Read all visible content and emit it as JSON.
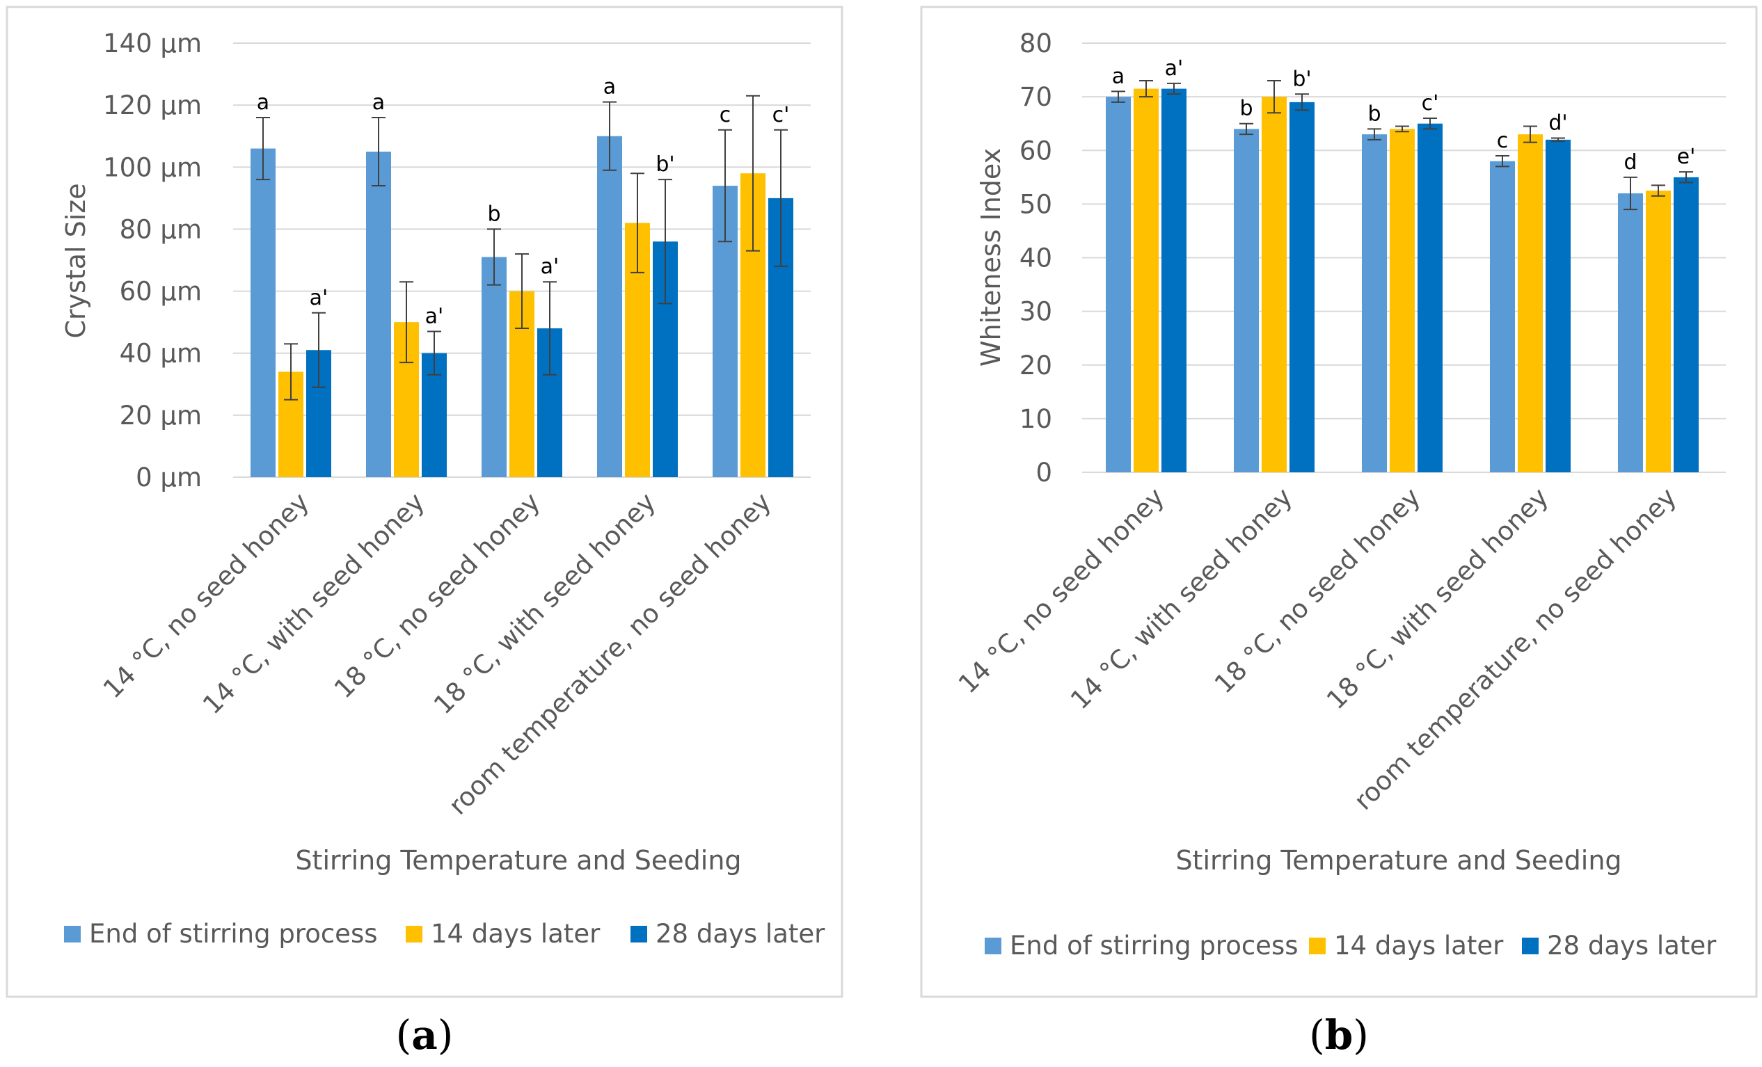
{
  "legend": {
    "end": "End of stirring process",
    "d14": "14 days later",
    "d28": "28 days later"
  },
  "colors": {
    "end": "#5b9bd5",
    "d14": "#ffc000",
    "d28": "#0070c0",
    "grid": "#d9d9d9",
    "frame": "#d9d9d9",
    "err": "#404040"
  },
  "chart_data": [
    {
      "type": "bar",
      "panel_label": "(a)",
      "panel": {
        "open": "(",
        "letter": "a",
        "close": ")"
      },
      "ylabel": "Crystal Size",
      "xlabel": "Stirring Temperature and Seeding",
      "ylim": [
        0,
        140
      ],
      "yticks": [
        "0 µm",
        "20 µm",
        "40 µm",
        "60 µm",
        "80 µm",
        "100 µm",
        "120 µm",
        "140 µm"
      ],
      "categories": [
        "14 °C, no seed honey",
        "14 °C, with seed honey",
        "18 °C, no seed honey",
        "18 °C, with seed honey",
        "room temperature, no seed honey"
      ],
      "series": [
        {
          "name": "End of stirring process",
          "key": "end",
          "values": [
            106,
            105,
            71,
            110,
            94
          ],
          "errors": [
            10,
            11,
            9,
            11,
            18
          ]
        },
        {
          "name": "14 days later",
          "key": "d14",
          "values": [
            34,
            50,
            60,
            82,
            98
          ],
          "errors": [
            9,
            13,
            12,
            16,
            25
          ]
        },
        {
          "name": "28 days later",
          "key": "d28",
          "values": [
            41,
            40,
            48,
            76,
            90
          ],
          "errors": [
            12,
            7,
            15,
            20,
            22
          ]
        }
      ],
      "annotations": [
        {
          "category": 0,
          "series": 0,
          "text": "a"
        },
        {
          "category": 0,
          "series": 2,
          "text": "a'"
        },
        {
          "category": 1,
          "series": 0,
          "text": "a"
        },
        {
          "category": 1,
          "series": 2,
          "text": "a'"
        },
        {
          "category": 2,
          "series": 0,
          "text": "b"
        },
        {
          "category": 2,
          "series": 2,
          "text": "a'"
        },
        {
          "category": 3,
          "series": 0,
          "text": "a"
        },
        {
          "category": 3,
          "series": 2,
          "text": "b'"
        },
        {
          "category": 4,
          "series": 0,
          "text": "c"
        },
        {
          "category": 4,
          "series": 2,
          "text": "c'"
        }
      ]
    },
    {
      "type": "bar",
      "panel_label": "(b)",
      "panel": {
        "open": "(",
        "letter": "b",
        "close": ")"
      },
      "ylabel": "Whiteness Index",
      "xlabel": "Stirring Temperature and Seeding",
      "ylim": [
        0,
        80
      ],
      "yticks": [
        "0",
        "10",
        "20",
        "30",
        "40",
        "50",
        "60",
        "70",
        "80"
      ],
      "categories": [
        "14 °C, no seed honey",
        "14 °C, with seed honey",
        "18 °C, no seed honey",
        "18 °C, with seed honey",
        "room temperature, no seed honey"
      ],
      "series": [
        {
          "name": "End of stirring process",
          "key": "end",
          "values": [
            70,
            64,
            63,
            58,
            52
          ],
          "errors": [
            1,
            1,
            1,
            1,
            3
          ]
        },
        {
          "name": "14 days later",
          "key": "d14",
          "values": [
            71.5,
            70,
            64,
            63,
            52.5
          ],
          "errors": [
            1.5,
            3,
            0.5,
            1.5,
            1
          ]
        },
        {
          "name": "28 days later",
          "key": "d28",
          "values": [
            71.5,
            69,
            65,
            62,
            55
          ],
          "errors": [
            1,
            1.5,
            1,
            0.3,
            1
          ]
        }
      ],
      "annotations": [
        {
          "category": 0,
          "series": 0,
          "text": "a"
        },
        {
          "category": 0,
          "series": 2,
          "text": "a'"
        },
        {
          "category": 1,
          "series": 0,
          "text": "b"
        },
        {
          "category": 1,
          "series": 2,
          "text": "b'"
        },
        {
          "category": 2,
          "series": 0,
          "text": "b"
        },
        {
          "category": 2,
          "series": 2,
          "text": "c'"
        },
        {
          "category": 3,
          "series": 0,
          "text": "c"
        },
        {
          "category": 3,
          "series": 2,
          "text": "d'"
        },
        {
          "category": 4,
          "series": 0,
          "text": "d"
        },
        {
          "category": 4,
          "series": 2,
          "text": "e'"
        }
      ]
    }
  ]
}
